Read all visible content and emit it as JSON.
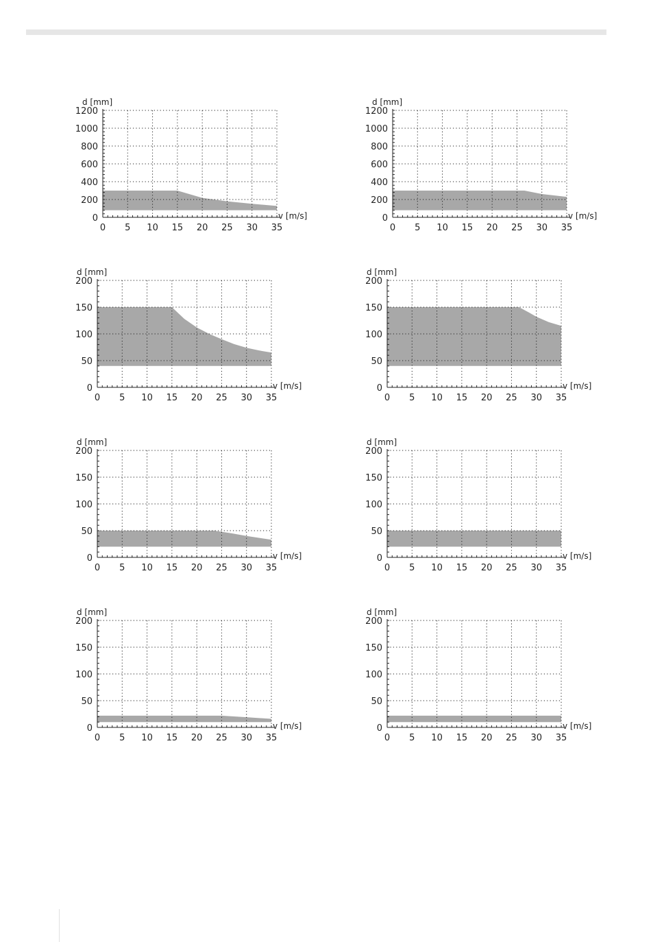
{
  "page": {
    "colors": {
      "fill": "#a8a8a8",
      "grid": "#222222",
      "axis": "#222222",
      "header_bar": "#e6e6e6"
    }
  },
  "chart_data": [
    {
      "type": "area",
      "ylabel": "d [mm]",
      "xlabel": "v [m/s]",
      "xlim": [
        0,
        35
      ],
      "ylim": [
        0,
        1200
      ],
      "xticks": [
        0,
        5,
        10,
        15,
        20,
        25,
        30,
        35
      ],
      "yticks": [
        0,
        200,
        400,
        600,
        800,
        1000,
        1200
      ],
      "grid": true,
      "lower": 80,
      "upper": [
        [
          0,
          300
        ],
        [
          15,
          300
        ],
        [
          20,
          218
        ],
        [
          25,
          180
        ],
        [
          30,
          152
        ],
        [
          35,
          128
        ]
      ]
    },
    {
      "type": "area",
      "ylabel": "d [mm]",
      "xlabel": "v [m/s]",
      "xlim": [
        0,
        35
      ],
      "ylim": [
        0,
        1200
      ],
      "xticks": [
        0,
        5,
        10,
        15,
        20,
        25,
        30,
        35
      ],
      "yticks": [
        0,
        200,
        400,
        600,
        800,
        1000,
        1200
      ],
      "grid": true,
      "lower": 80,
      "upper": [
        [
          0,
          300
        ],
        [
          26.5,
          300
        ],
        [
          30,
          262
        ],
        [
          35,
          230
        ]
      ]
    },
    {
      "type": "area",
      "ylabel": "d [mm]",
      "xlabel": "v [m/s]",
      "xlim": [
        0,
        35
      ],
      "ylim": [
        0,
        200
      ],
      "xticks": [
        0,
        5,
        10,
        15,
        20,
        25,
        30,
        35
      ],
      "yticks": [
        0,
        50,
        100,
        150,
        200
      ],
      "grid": true,
      "lower": 40,
      "upper": [
        [
          0,
          150
        ],
        [
          15,
          150
        ],
        [
          17.5,
          128
        ],
        [
          20,
          112
        ],
        [
          22.5,
          100
        ],
        [
          25,
          90
        ],
        [
          27.5,
          81
        ],
        [
          30,
          74
        ],
        [
          32.5,
          69
        ],
        [
          35,
          65
        ]
      ]
    },
    {
      "type": "area",
      "ylabel": "d [mm]",
      "xlabel": "v [m/s]",
      "xlim": [
        0,
        35
      ],
      "ylim": [
        0,
        200
      ],
      "xticks": [
        0,
        5,
        10,
        15,
        20,
        25,
        30,
        35
      ],
      "yticks": [
        0,
        50,
        100,
        150,
        200
      ],
      "grid": true,
      "lower": 40,
      "upper": [
        [
          0,
          150
        ],
        [
          26.5,
          150
        ],
        [
          28.5,
          140
        ],
        [
          30,
          132
        ],
        [
          32.5,
          122
        ],
        [
          35,
          115
        ]
      ]
    },
    {
      "type": "area",
      "ylabel": "d [mm]",
      "xlabel": "v [m/s]",
      "xlim": [
        0,
        35
      ],
      "ylim": [
        0,
        200
      ],
      "xticks": [
        0,
        5,
        10,
        15,
        20,
        25,
        30,
        35
      ],
      "yticks": [
        0,
        50,
        100,
        150,
        200
      ],
      "grid": true,
      "lower": 20,
      "upper": [
        [
          0,
          50
        ],
        [
          23.5,
          50
        ],
        [
          27,
          45
        ],
        [
          30,
          40
        ],
        [
          35,
          33
        ]
      ]
    },
    {
      "type": "area",
      "ylabel": "d [mm]",
      "xlabel": "v [m/s]",
      "xlim": [
        0,
        35
      ],
      "ylim": [
        0,
        200
      ],
      "xticks": [
        0,
        5,
        10,
        15,
        20,
        25,
        30,
        35
      ],
      "yticks": [
        0,
        50,
        100,
        150,
        200
      ],
      "grid": true,
      "lower": 20,
      "upper": [
        [
          0,
          50
        ],
        [
          35,
          50
        ]
      ]
    },
    {
      "type": "area",
      "ylabel": "d [mm]",
      "xlabel": "v [m/s]",
      "xlim": [
        0,
        35
      ],
      "ylim": [
        0,
        200
      ],
      "xticks": [
        0,
        5,
        10,
        15,
        20,
        25,
        30,
        35
      ],
      "yticks": [
        0,
        50,
        100,
        150,
        200
      ],
      "grid": true,
      "lower": 10,
      "upper": [
        [
          0,
          22
        ],
        [
          25,
          22
        ],
        [
          30,
          19
        ],
        [
          35,
          16
        ]
      ]
    },
    {
      "type": "area",
      "ylabel": "d [mm]",
      "xlabel": "v [m/s]",
      "xlim": [
        0,
        35
      ],
      "ylim": [
        0,
        200
      ],
      "xticks": [
        0,
        5,
        10,
        15,
        20,
        25,
        30,
        35
      ],
      "yticks": [
        0,
        50,
        100,
        150,
        200
      ],
      "grid": true,
      "lower": 10,
      "upper": [
        [
          0,
          22
        ],
        [
          35,
          22
        ]
      ]
    }
  ]
}
